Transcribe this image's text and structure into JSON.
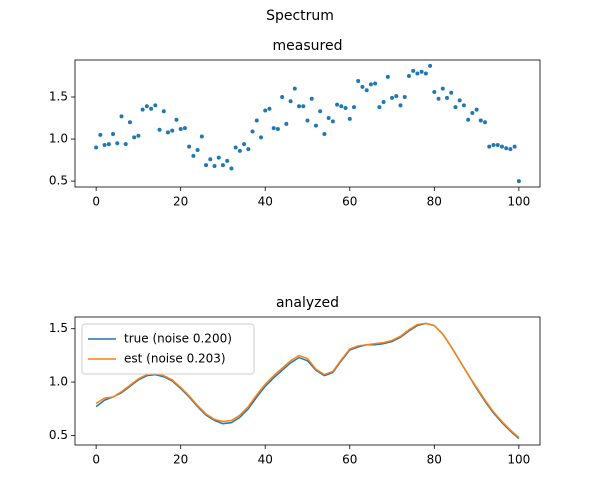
{
  "title": "Spectrum",
  "chart_data": [
    {
      "type": "scatter",
      "title": "measured",
      "x": [
        0,
        1,
        2,
        3,
        4,
        5,
        6,
        7,
        8,
        9,
        10,
        11,
        12,
        13,
        14,
        15,
        16,
        17,
        18,
        19,
        20,
        21,
        22,
        23,
        24,
        25,
        26,
        27,
        28,
        29,
        30,
        31,
        32,
        33,
        34,
        35,
        36,
        37,
        38,
        39,
        40,
        41,
        42,
        43,
        44,
        45,
        46,
        47,
        48,
        49,
        50,
        51,
        52,
        53,
        54,
        55,
        56,
        57,
        58,
        59,
        60,
        61,
        62,
        63,
        64,
        65,
        66,
        67,
        68,
        69,
        70,
        71,
        72,
        73,
        74,
        75,
        76,
        77,
        78,
        79,
        80,
        81,
        82,
        83,
        84,
        85,
        86,
        87,
        88,
        89,
        90,
        91,
        92,
        93,
        94,
        95,
        96,
        97,
        98,
        99,
        100
      ],
      "values": [
        0.9,
        1.05,
        0.93,
        0.94,
        1.06,
        0.95,
        1.27,
        0.94,
        1.2,
        1.02,
        1.04,
        1.35,
        1.39,
        1.36,
        1.4,
        1.11,
        1.33,
        1.08,
        1.1,
        1.23,
        1.12,
        1.13,
        0.91,
        0.8,
        0.87,
        1.03,
        0.69,
        0.76,
        0.68,
        0.78,
        0.69,
        0.74,
        0.65,
        0.9,
        0.86,
        0.94,
        0.88,
        1.09,
        1.22,
        1.02,
        1.34,
        1.36,
        1.13,
        1.12,
        1.5,
        1.18,
        1.45,
        1.6,
        1.39,
        1.39,
        1.22,
        1.48,
        1.16,
        1.33,
        1.06,
        1.25,
        1.21,
        1.41,
        1.39,
        1.37,
        1.24,
        1.38,
        1.69,
        1.62,
        1.58,
        1.65,
        1.66,
        1.38,
        1.44,
        1.74,
        1.49,
        1.51,
        1.4,
        1.5,
        1.75,
        1.81,
        1.78,
        1.8,
        1.78,
        1.87,
        1.56,
        1.48,
        1.6,
        1.49,
        1.55,
        1.38,
        1.46,
        1.4,
        1.23,
        1.31,
        1.35,
        1.22,
        1.2,
        0.91,
        0.93,
        0.93,
        0.91,
        0.89,
        0.88,
        0.91,
        0.5
      ],
      "color": "#1f77b4",
      "xlim": [
        -5,
        105
      ],
      "ylim": [
        0.43,
        1.94
      ],
      "xticks": [
        0,
        20,
        40,
        60,
        80,
        100
      ],
      "yticks": [
        0.5,
        {
          "value": 1,
          "label": "1.0"
        },
        1.5
      ]
    },
    {
      "type": "line",
      "title": "analyzed",
      "x": [
        0,
        2,
        4,
        6,
        8,
        10,
        12,
        14,
        16,
        18,
        20,
        22,
        24,
        26,
        28,
        30,
        32,
        34,
        36,
        38,
        40,
        42,
        44,
        46,
        48,
        50,
        52,
        54,
        56,
        58,
        60,
        62,
        64,
        66,
        68,
        70,
        72,
        74,
        76,
        78,
        80,
        82,
        84,
        86,
        88,
        90,
        92,
        94,
        96,
        98,
        100
      ],
      "series": [
        {
          "name": "true (noise 0.200)",
          "color": "#1f77b4",
          "values": [
            0.77,
            0.83,
            0.86,
            0.9,
            0.96,
            1.02,
            1.06,
            1.07,
            1.05,
            1.01,
            0.94,
            0.86,
            0.77,
            0.69,
            0.64,
            0.61,
            0.62,
            0.67,
            0.75,
            0.86,
            0.96,
            1.04,
            1.11,
            1.18,
            1.23,
            1.2,
            1.11,
            1.06,
            1.09,
            1.2,
            1.3,
            1.33,
            1.35,
            1.35,
            1.36,
            1.38,
            1.42,
            1.48,
            1.53,
            1.55,
            1.53,
            1.45,
            1.33,
            1.2,
            1.07,
            0.94,
            0.82,
            0.71,
            0.62,
            0.54,
            0.47
          ]
        },
        {
          "name": "est (noise 0.203)",
          "color": "#ff7f0e",
          "values": [
            0.8,
            0.85,
            0.86,
            0.91,
            0.97,
            1.03,
            1.07,
            1.08,
            1.06,
            1.02,
            0.95,
            0.87,
            0.78,
            0.7,
            0.65,
            0.63,
            0.64,
            0.69,
            0.77,
            0.88,
            0.98,
            1.06,
            1.13,
            1.2,
            1.25,
            1.22,
            1.12,
            1.07,
            1.1,
            1.21,
            1.31,
            1.34,
            1.35,
            1.36,
            1.37,
            1.39,
            1.43,
            1.49,
            1.54,
            1.55,
            1.53,
            1.45,
            1.33,
            1.2,
            1.07,
            0.95,
            0.83,
            0.72,
            0.63,
            0.55,
            0.48
          ]
        }
      ],
      "xlim": [
        -5,
        105
      ],
      "ylim": [
        0.41,
        1.61
      ],
      "xticks": [
        0,
        20,
        40,
        60,
        80,
        100
      ],
      "yticks": [
        0.5,
        {
          "value": 1,
          "label": "1.0"
        },
        1.5
      ],
      "legend": "upper left"
    }
  ]
}
